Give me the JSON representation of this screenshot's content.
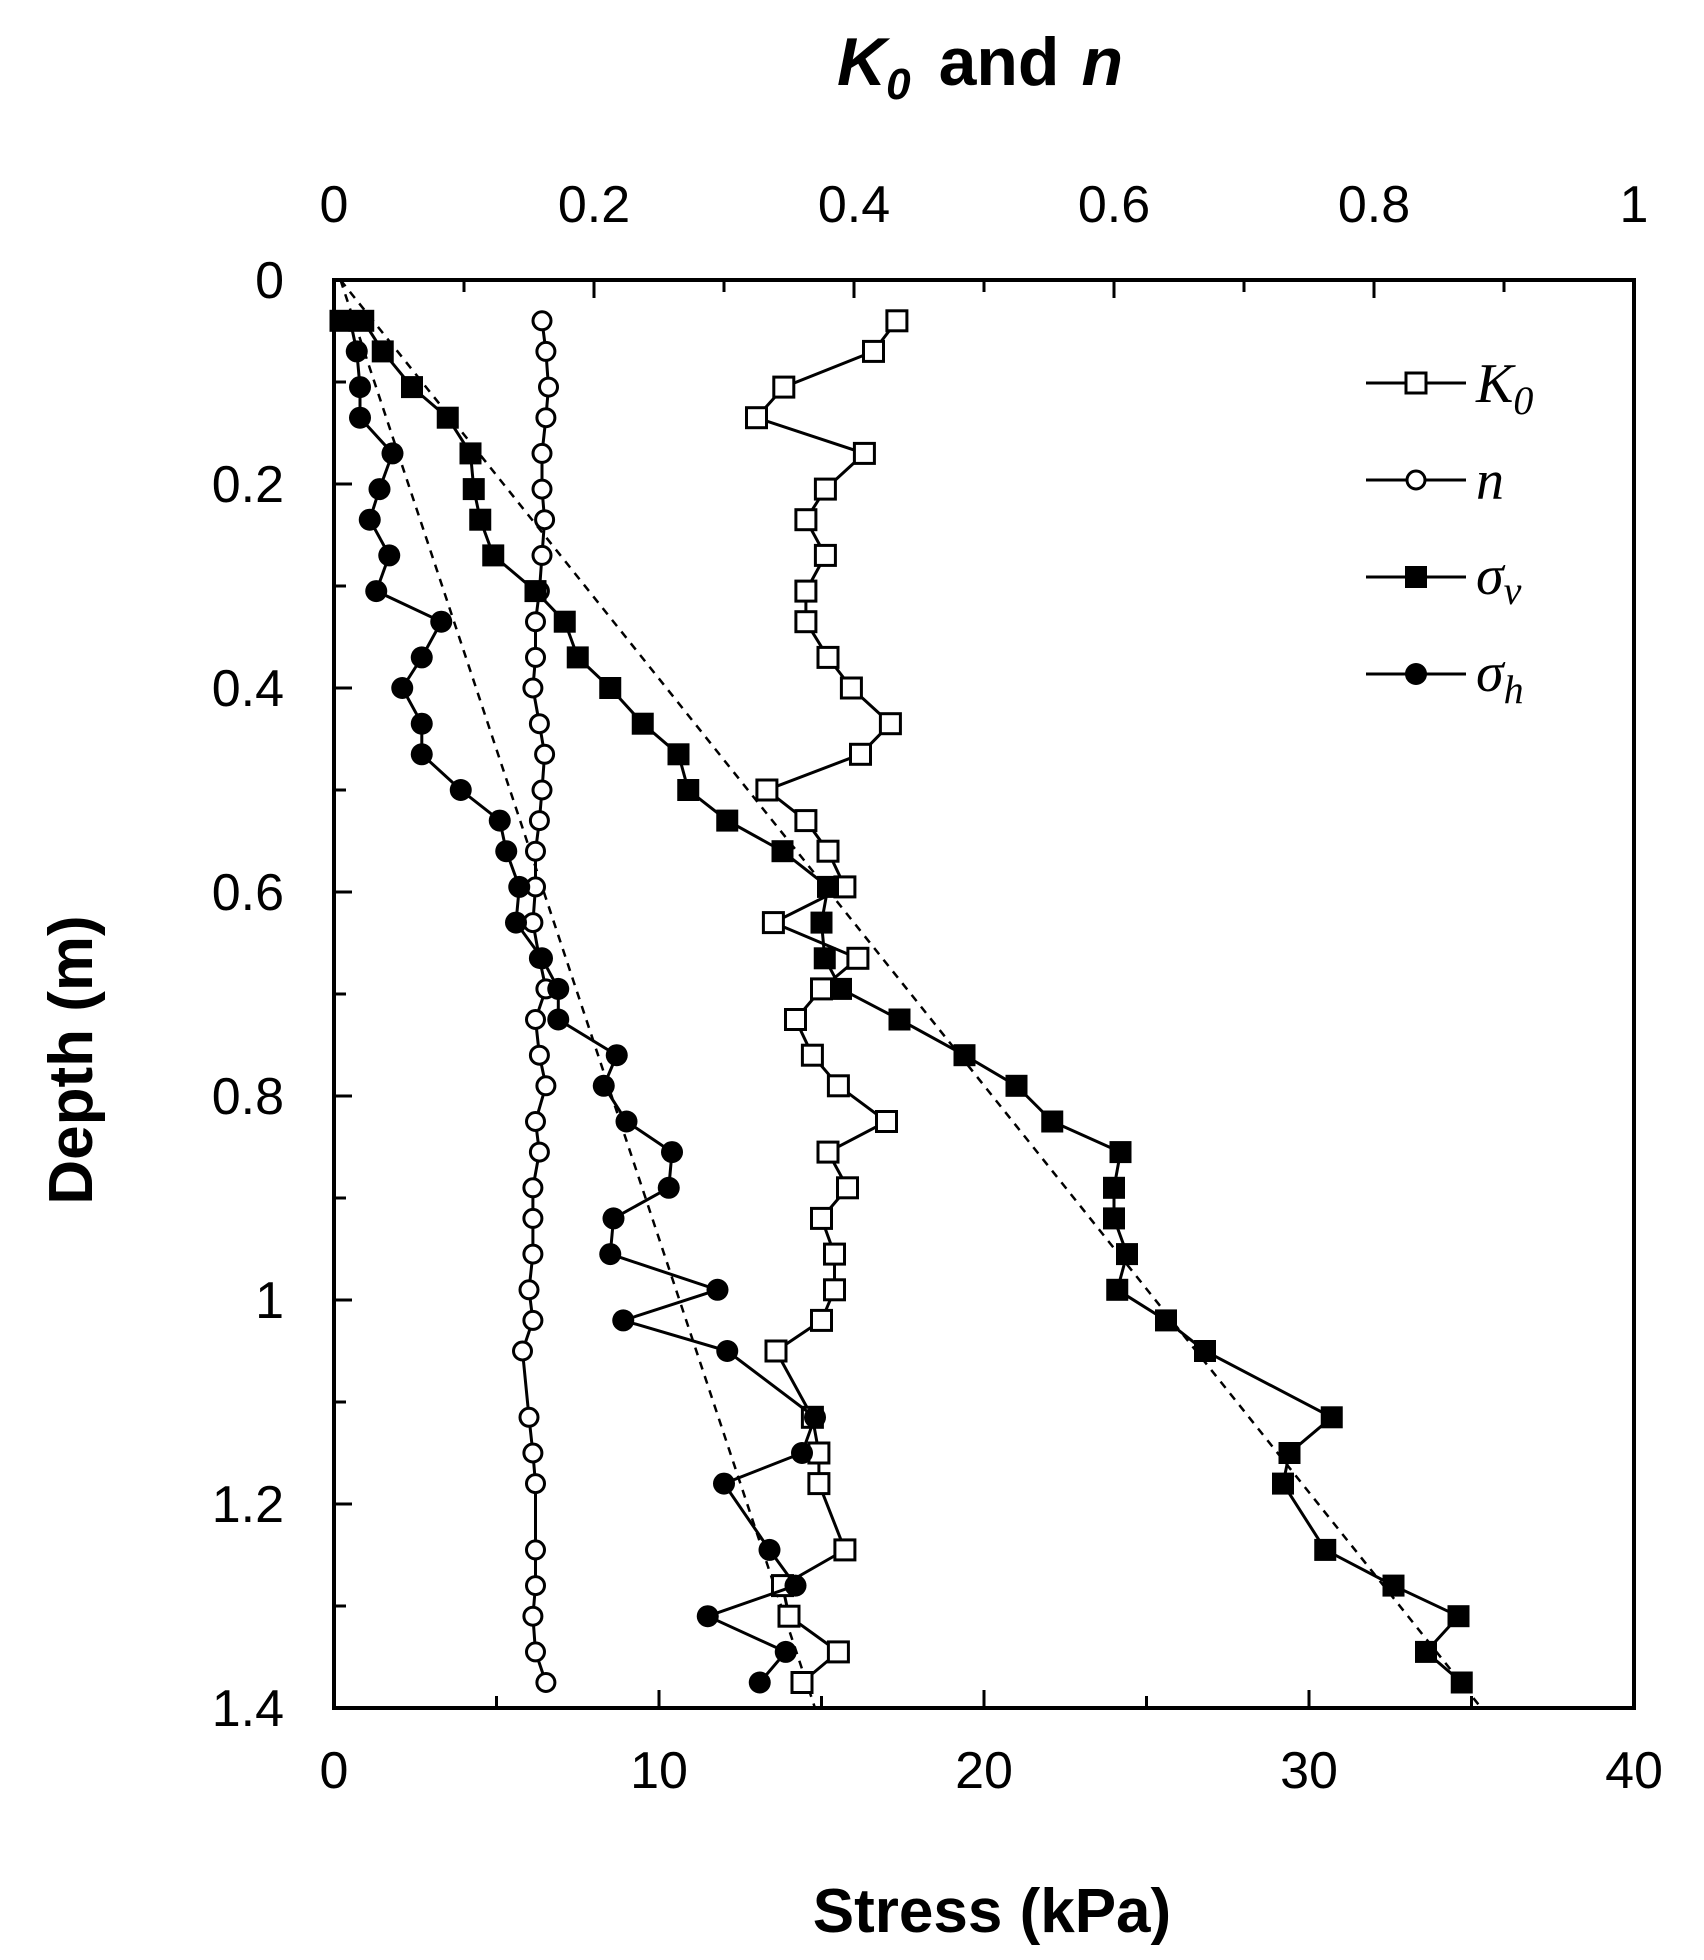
{
  "chart_data": {
    "type": "line",
    "y_axis": {
      "label": "Depth (m)",
      "range": [
        0,
        1.4
      ],
      "inverted": true,
      "ticks": [
        "0",
        "0.2",
        "0.4",
        "0.6",
        "0.8",
        "1",
        "1.2",
        "1.4"
      ]
    },
    "x_axis_bottom": {
      "label": "Stress (kPa)",
      "range": [
        0,
        40
      ],
      "ticks": [
        "0",
        "10",
        "20",
        "30",
        "40"
      ]
    },
    "x_axis_top": {
      "label_main": "K",
      "label_sub": "0",
      "label_rest": "and",
      "label_n": "n",
      "range": [
        0,
        1
      ],
      "ticks": [
        "0",
        "0.2",
        "0.4",
        "0.6",
        "0.8",
        "1"
      ]
    },
    "grid": false,
    "legend_position": "top-right",
    "series": [
      {
        "name": "K0",
        "name_main": "K",
        "name_sub": "0",
        "axis": "top",
        "marker": "open-square",
        "points": [
          [
            0.433,
            0.04
          ],
          [
            0.415,
            0.07
          ],
          [
            0.346,
            0.105
          ],
          [
            0.325,
            0.135
          ],
          [
            0.408,
            0.17
          ],
          [
            0.378,
            0.205
          ],
          [
            0.363,
            0.235
          ],
          [
            0.378,
            0.27
          ],
          [
            0.363,
            0.305
          ],
          [
            0.363,
            0.335
          ],
          [
            0.38,
            0.37
          ],
          [
            0.398,
            0.4
          ],
          [
            0.428,
            0.435
          ],
          [
            0.405,
            0.465
          ],
          [
            0.333,
            0.5
          ],
          [
            0.363,
            0.53
          ],
          [
            0.38,
            0.56
          ],
          [
            0.393,
            0.595
          ],
          [
            0.338,
            0.63
          ],
          [
            0.403,
            0.665
          ],
          [
            0.375,
            0.695
          ],
          [
            0.355,
            0.725
          ],
          [
            0.368,
            0.76
          ],
          [
            0.388,
            0.79
          ],
          [
            0.425,
            0.825
          ],
          [
            0.38,
            0.855
          ],
          [
            0.395,
            0.89
          ],
          [
            0.375,
            0.92
          ],
          [
            0.385,
            0.955
          ],
          [
            0.385,
            0.99
          ],
          [
            0.375,
            1.02
          ],
          [
            0.34,
            1.05
          ],
          [
            0.368,
            1.115
          ],
          [
            0.373,
            1.15
          ],
          [
            0.373,
            1.18
          ],
          [
            0.393,
            1.245
          ],
          [
            0.345,
            1.28
          ],
          [
            0.35,
            1.31
          ],
          [
            0.388,
            1.345
          ],
          [
            0.36,
            1.375
          ]
        ]
      },
      {
        "name": "n",
        "axis": "top",
        "marker": "open-circle",
        "points": [
          [
            0.16,
            0.04
          ],
          [
            0.163,
            0.07
          ],
          [
            0.165,
            0.105
          ],
          [
            0.163,
            0.135
          ],
          [
            0.16,
            0.17
          ],
          [
            0.16,
            0.205
          ],
          [
            0.162,
            0.235
          ],
          [
            0.16,
            0.27
          ],
          [
            0.158,
            0.305
          ],
          [
            0.155,
            0.335
          ],
          [
            0.155,
            0.37
          ],
          [
            0.153,
            0.4
          ],
          [
            0.158,
            0.435
          ],
          [
            0.162,
            0.465
          ],
          [
            0.16,
            0.5
          ],
          [
            0.158,
            0.53
          ],
          [
            0.155,
            0.56
          ],
          [
            0.155,
            0.595
          ],
          [
            0.153,
            0.63
          ],
          [
            0.158,
            0.665
          ],
          [
            0.163,
            0.695
          ],
          [
            0.155,
            0.725
          ],
          [
            0.158,
            0.76
          ],
          [
            0.163,
            0.79
          ],
          [
            0.155,
            0.825
          ],
          [
            0.158,
            0.855
          ],
          [
            0.153,
            0.89
          ],
          [
            0.153,
            0.92
          ],
          [
            0.153,
            0.955
          ],
          [
            0.15,
            0.99
          ],
          [
            0.153,
            1.02
          ],
          [
            0.145,
            1.05
          ],
          [
            0.15,
            1.115
          ],
          [
            0.153,
            1.15
          ],
          [
            0.155,
            1.18
          ],
          [
            0.155,
            1.245
          ],
          [
            0.155,
            1.28
          ],
          [
            0.153,
            1.31
          ],
          [
            0.155,
            1.345
          ],
          [
            0.163,
            1.375
          ]
        ]
      },
      {
        "name": "σv",
        "name_main": "σ",
        "name_sub": "v",
        "axis": "bottom",
        "marker": "filled-square",
        "points": [
          [
            0.2,
            0.04
          ],
          [
            0.9,
            0.04
          ],
          [
            1.5,
            0.07
          ],
          [
            2.4,
            0.105
          ],
          [
            3.5,
            0.135
          ],
          [
            4.2,
            0.17
          ],
          [
            4.3,
            0.205
          ],
          [
            4.5,
            0.235
          ],
          [
            4.9,
            0.27
          ],
          [
            6.2,
            0.305
          ],
          [
            7.1,
            0.335
          ],
          [
            7.5,
            0.37
          ],
          [
            8.5,
            0.4
          ],
          [
            9.5,
            0.435
          ],
          [
            10.6,
            0.465
          ],
          [
            10.9,
            0.5
          ],
          [
            12.1,
            0.53
          ],
          [
            13.8,
            0.56
          ],
          [
            15.2,
            0.595
          ],
          [
            15.0,
            0.63
          ],
          [
            15.1,
            0.665
          ],
          [
            15.6,
            0.695
          ],
          [
            17.4,
            0.725
          ],
          [
            19.4,
            0.76
          ],
          [
            21.0,
            0.79
          ],
          [
            22.1,
            0.825
          ],
          [
            24.2,
            0.855
          ],
          [
            24.0,
            0.89
          ],
          [
            24.0,
            0.92
          ],
          [
            24.4,
            0.955
          ],
          [
            24.1,
            0.99
          ],
          [
            25.6,
            1.02
          ],
          [
            26.8,
            1.05
          ],
          [
            30.7,
            1.115
          ],
          [
            29.4,
            1.15
          ],
          [
            29.2,
            1.18
          ],
          [
            30.5,
            1.245
          ],
          [
            32.6,
            1.28
          ],
          [
            34.6,
            1.31
          ],
          [
            33.6,
            1.345
          ],
          [
            34.7,
            1.375
          ]
        ]
      },
      {
        "name": "σh",
        "name_main": "σ",
        "name_sub": "h",
        "axis": "bottom",
        "marker": "filled-circle",
        "points": [
          [
            0.5,
            0.04
          ],
          [
            0.7,
            0.07
          ],
          [
            0.8,
            0.105
          ],
          [
            0.8,
            0.135
          ],
          [
            1.8,
            0.17
          ],
          [
            1.4,
            0.205
          ],
          [
            1.1,
            0.235
          ],
          [
            1.7,
            0.27
          ],
          [
            1.3,
            0.305
          ],
          [
            3.3,
            0.335
          ],
          [
            2.7,
            0.37
          ],
          [
            2.1,
            0.4
          ],
          [
            2.7,
            0.435
          ],
          [
            2.7,
            0.465
          ],
          [
            3.9,
            0.5
          ],
          [
            5.1,
            0.53
          ],
          [
            5.3,
            0.56
          ],
          [
            5.7,
            0.595
          ],
          [
            5.6,
            0.63
          ],
          [
            6.4,
            0.665
          ],
          [
            6.9,
            0.695
          ],
          [
            6.9,
            0.725
          ],
          [
            8.7,
            0.76
          ],
          [
            8.3,
            0.79
          ],
          [
            9.0,
            0.825
          ],
          [
            10.4,
            0.855
          ],
          [
            10.3,
            0.89
          ],
          [
            8.6,
            0.92
          ],
          [
            8.5,
            0.955
          ],
          [
            11.8,
            0.99
          ],
          [
            8.9,
            1.02
          ],
          [
            12.1,
            1.05
          ],
          [
            14.8,
            1.115
          ],
          [
            14.4,
            1.15
          ],
          [
            12.0,
            1.18
          ],
          [
            13.4,
            1.245
          ],
          [
            14.2,
            1.28
          ],
          [
            11.5,
            1.31
          ],
          [
            13.9,
            1.345
          ],
          [
            13.1,
            1.375
          ]
        ]
      }
    ],
    "trend_lines": [
      {
        "style": "dashed",
        "axis": "bottom",
        "points": [
          [
            0.2,
            0.0
          ],
          [
            35.3,
            1.4
          ]
        ]
      },
      {
        "style": "dashed",
        "axis": "bottom",
        "points": [
          [
            0.2,
            0.0
          ],
          [
            14.8,
            1.4
          ]
        ]
      }
    ]
  }
}
